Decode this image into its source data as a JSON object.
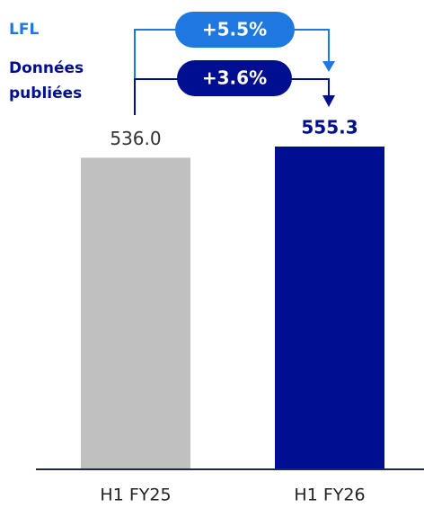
{
  "chart_data": {
    "type": "bar",
    "categories": [
      "H1 FY25",
      "H1 FY26"
    ],
    "values": [
      536.0,
      555.3
    ],
    "value_labels": [
      "536.0",
      "555.3"
    ],
    "colors": [
      "#c0c0c0",
      "#000f8f"
    ],
    "annotations": {
      "lfl": {
        "label": "LFL",
        "change": "+5.5%",
        "color": "#1f78e0"
      },
      "reported": {
        "label": [
          "Données",
          "publiées"
        ],
        "change": "+3.6%",
        "color": "#000f8f"
      }
    }
  }
}
